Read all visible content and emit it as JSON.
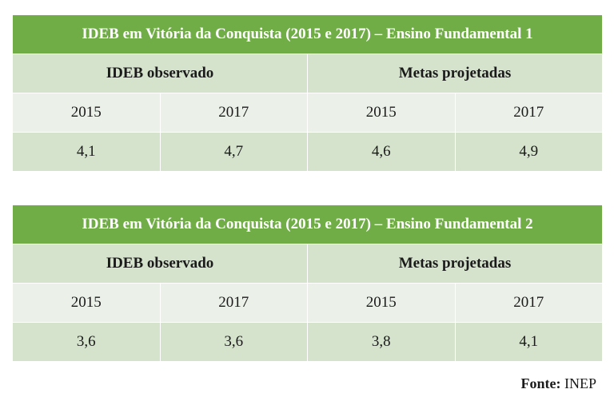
{
  "tables": [
    {
      "title": "IDEB em Vitória da Conquista (2015 e 2017) – Ensino Fundamental 1",
      "group_headers": [
        "IDEB observado",
        "Metas projetadas"
      ],
      "years": [
        "2015",
        "2017",
        "2015",
        "2017"
      ],
      "values": [
        "4,1",
        "4,7",
        "4,6",
        "4,9"
      ]
    },
    {
      "title": "IDEB em Vitória da Conquista (2015 e 2017) – Ensino Fundamental 2",
      "group_headers": [
        "IDEB observado",
        "Metas projetadas"
      ],
      "years": [
        "2015",
        "2017",
        "2015",
        "2017"
      ],
      "values": [
        "3,6",
        "3,6",
        "3,8",
        "4,1"
      ]
    }
  ],
  "source": {
    "label": "Fonte:",
    "value": "INEP"
  },
  "colors": {
    "title_bg": "#70ad47",
    "header_bg": "#d5e3cd",
    "light_bg": "#ebf1e8"
  }
}
